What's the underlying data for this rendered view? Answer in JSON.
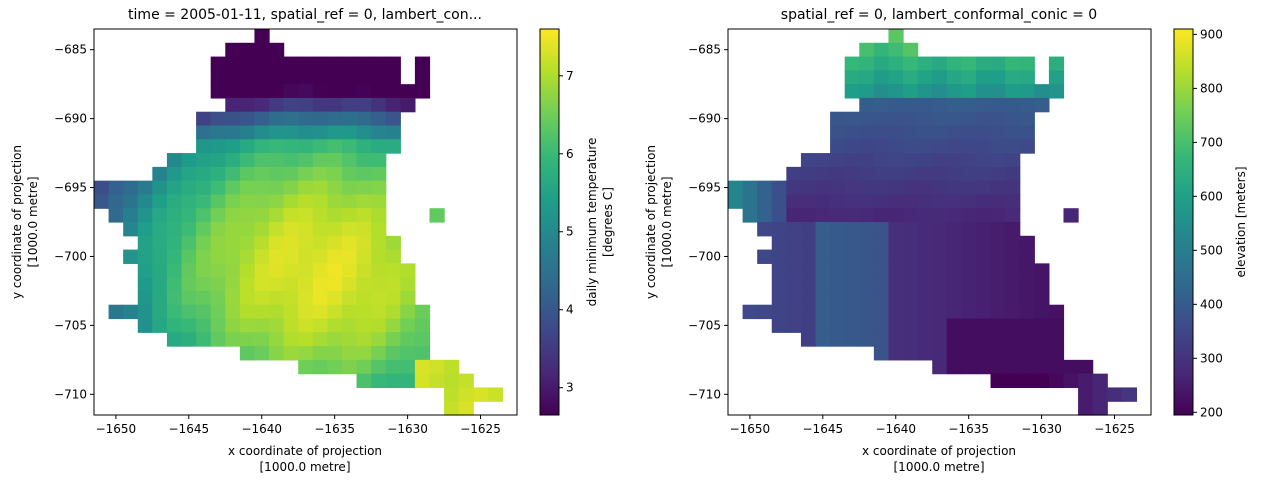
{
  "chart_data": [
    {
      "type": "heatmap",
      "title": "time = 2005-01-11, spatial_ref = 0, lambert_con...",
      "xlabel": [
        "x coordinate of projection",
        "[1000.0 metre]"
      ],
      "ylabel": [
        "y coordinate of projection",
        "[1000.0 metre]"
      ],
      "xlim": [
        -1651.5,
        -1622.5
      ],
      "ylim": [
        -711.5,
        -683.5
      ],
      "xticks": [
        -1650,
        -1645,
        -1640,
        -1635,
        -1630,
        -1625
      ],
      "yticks": [
        -685,
        -690,
        -695,
        -700,
        -705,
        -710
      ],
      "xtick_labels": [
        "−1650",
        "−1645",
        "−1640",
        "−1635",
        "−1630",
        "−1625"
      ],
      "ytick_labels": [
        "−685",
        "−690",
        "−695",
        "−700",
        "−705",
        "−710"
      ],
      "colormap": "viridis",
      "colorbar": {
        "label": [
          "daily minimum temperature",
          "[degrees C]"
        ],
        "range": [
          2.65,
          7.6
        ],
        "ticks": [
          3,
          4,
          5,
          6,
          7
        ],
        "tick_labels": [
          "3",
          "4",
          "5",
          "6",
          "7"
        ]
      },
      "variable": "tmin"
    },
    {
      "type": "heatmap",
      "title": "spatial_ref = 0, lambert_conformal_conic = 0",
      "xlabel": [
        "x coordinate of projection",
        "[1000.0 metre]"
      ],
      "ylabel": [
        "y coordinate of projection",
        "[1000.0 metre]"
      ],
      "xlim": [
        -1651.5,
        -1622.5
      ],
      "ylim": [
        -711.5,
        -683.5
      ],
      "xticks": [
        -1650,
        -1645,
        -1640,
        -1635,
        -1630,
        -1625
      ],
      "yticks": [
        -685,
        -690,
        -695,
        -700,
        -705,
        -710
      ],
      "xtick_labels": [
        "−1650",
        "−1645",
        "−1640",
        "−1635",
        "−1630",
        "−1625"
      ],
      "ytick_labels": [
        "−685",
        "−690",
        "−695",
        "−700",
        "−705",
        "−710"
      ],
      "colormap": "viridis",
      "colorbar": {
        "label": [
          "elevation [meters]"
        ],
        "range": [
          195,
          910
        ],
        "ticks": [
          200,
          300,
          400,
          500,
          600,
          700,
          800,
          900
        ],
        "tick_labels": [
          "200",
          "300",
          "400",
          "500",
          "600",
          "700",
          "800",
          "900"
        ]
      },
      "variable": "elev"
    }
  ]
}
